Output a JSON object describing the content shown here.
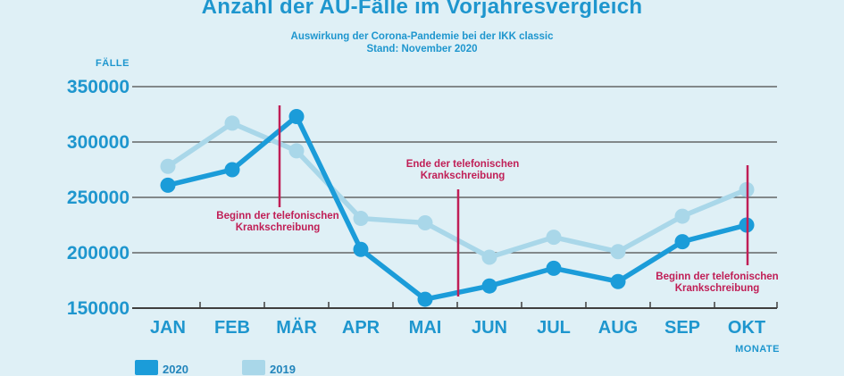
{
  "page": {
    "title": "Anzahl der AU-Fälle im Vorjahresvergleich",
    "subtitle_line1": "Auswirkung der Corona-Pandemie bei der IKK classic",
    "subtitle_line2": "Stand: November 2020"
  },
  "colors": {
    "background": "#DFF0F6",
    "accent_blue": "#1E96CE",
    "series_2020": "#1B9CD9",
    "series_2019": "#A9D7E9",
    "annotation_red": "#C01E56",
    "gridline": "#4A4A49",
    "axis": "#3F3F3E"
  },
  "chart_data": {
    "type": "line",
    "title": "Anzahl der AU-Fälle im Vorjahresvergleich",
    "subtitle": "Auswirkung der Corona-Pandemie bei der IKK classic — Stand: November 2020",
    "ylabel": "FÄLLE",
    "xlabel": "MONATE",
    "ylim": [
      150000,
      350000
    ],
    "yticks": [
      350000,
      300000,
      250000,
      200000,
      150000
    ],
    "grid": true,
    "legend_position": "bottom-left",
    "categories": [
      "JAN",
      "FEB",
      "MÄR",
      "APR",
      "MAI",
      "JUN",
      "JUL",
      "AUG",
      "SEP",
      "OKT"
    ],
    "series": [
      {
        "name": "2019",
        "color": "#A9D7E9",
        "values": [
          278000,
          317000,
          292000,
          231000,
          227000,
          196000,
          214000,
          201000,
          233000,
          257000
        ]
      },
      {
        "name": "2020",
        "color": "#1B9CD9",
        "values": [
          261000,
          275000,
          323000,
          203000,
          158000,
          170000,
          186000,
          174000,
          210000,
          225000
        ]
      }
    ],
    "legend_order": [
      "2020",
      "2019"
    ],
    "annotations": [
      {
        "text_line1": "Beginn der telefonischen",
        "text_line2": "Krankschreibung",
        "line_x": 313,
        "line_y1": 118,
        "line_y2": 232,
        "text_x": 311,
        "text_y": 236
      },
      {
        "text_line1": "Ende der telefonischen",
        "text_line2": "Krankschreibung",
        "line_x": 513,
        "line_y1": 212,
        "line_y2": 332,
        "text_x": 518,
        "text_y": 178
      },
      {
        "text_line1": "Beginn der telefonischen",
        "text_line2": "Krankschreibung",
        "line_x": 837,
        "line_y1": 185,
        "line_y2": 297,
        "text_x": 803,
        "text_y": 304
      }
    ]
  }
}
